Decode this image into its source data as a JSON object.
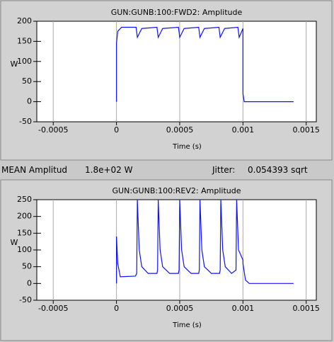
{
  "chart_data": [
    {
      "type": "line",
      "title": "GUN:GUNB:100:FWD2: Amplitude",
      "x_label": "Time (s)",
      "y_label": "W",
      "color": "#1010ff",
      "grid": "x",
      "xlim": [
        -0.00063,
        0.00158
      ],
      "ylim": [
        -50,
        200
      ],
      "xticks": [
        -0.0005,
        0,
        0.0005,
        0.001,
        0.0015
      ],
      "yticks": [
        -50,
        0,
        50,
        100,
        150,
        200
      ],
      "x": [
        0,
        0,
        1e-05,
        4e-05,
        0.000155,
        0.000165,
        0.0002,
        0.00032,
        0.00033,
        0.000365,
        0.00049,
        0.0005,
        0.000535,
        0.00065,
        0.00066,
        0.000695,
        0.00081,
        0.00082,
        0.000855,
        0.00096,
        0.00097,
        0.001,
        0.001,
        0.00101,
        0.0014
      ],
      "values": [
        0,
        145,
        175,
        185,
        185,
        160,
        182,
        185,
        160,
        182,
        185,
        160,
        182,
        185,
        160,
        182,
        185,
        160,
        182,
        185,
        160,
        182,
        20,
        0,
        0
      ]
    },
    {
      "type": "line",
      "title": "GUN:GUNB:100:REV2: Amplitude",
      "x_label": "Time (s)",
      "y_label": "W",
      "color": "#1010ff",
      "grid": "x",
      "xlim": [
        -0.00063,
        0.00158
      ],
      "ylim": [
        -50,
        250
      ],
      "xticks": [
        -0.0005,
        0,
        0.0005,
        0.001,
        0.0015
      ],
      "yticks": [
        -50,
        0,
        50,
        100,
        150,
        200,
        250
      ],
      "x": [
        0,
        0,
        1e-05,
        3e-05,
        0.00015,
        0.00016,
        0.000165,
        0.00018,
        0.0002,
        0.00025,
        0.00032,
        0.000325,
        0.00033,
        0.000345,
        0.000365,
        0.00042,
        0.00049,
        0.000495,
        0.0005,
        0.000515,
        0.000535,
        0.00059,
        0.00065,
        0.000655,
        0.00066,
        0.000675,
        0.000695,
        0.00075,
        0.000815,
        0.00082,
        0.000825,
        0.00084,
        0.00086,
        0.00091,
        0.000945,
        0.00095,
        0.000965,
        0.001,
        0.001,
        0.00102,
        0.00105,
        0.0014
      ],
      "values": [
        0,
        140,
        60,
        20,
        22,
        30,
        250,
        100,
        50,
        30,
        30,
        40,
        250,
        100,
        50,
        30,
        30,
        40,
        250,
        100,
        50,
        30,
        30,
        40,
        250,
        100,
        50,
        30,
        30,
        40,
        250,
        100,
        50,
        30,
        40,
        250,
        100,
        70,
        60,
        10,
        0,
        0
      ]
    }
  ],
  "status": {
    "mean_label": "MEAN Amplitud",
    "mean_value": "1.8e+02 W",
    "jitter_label": "Jitter:",
    "jitter_value": "0.054393 sqrt"
  }
}
